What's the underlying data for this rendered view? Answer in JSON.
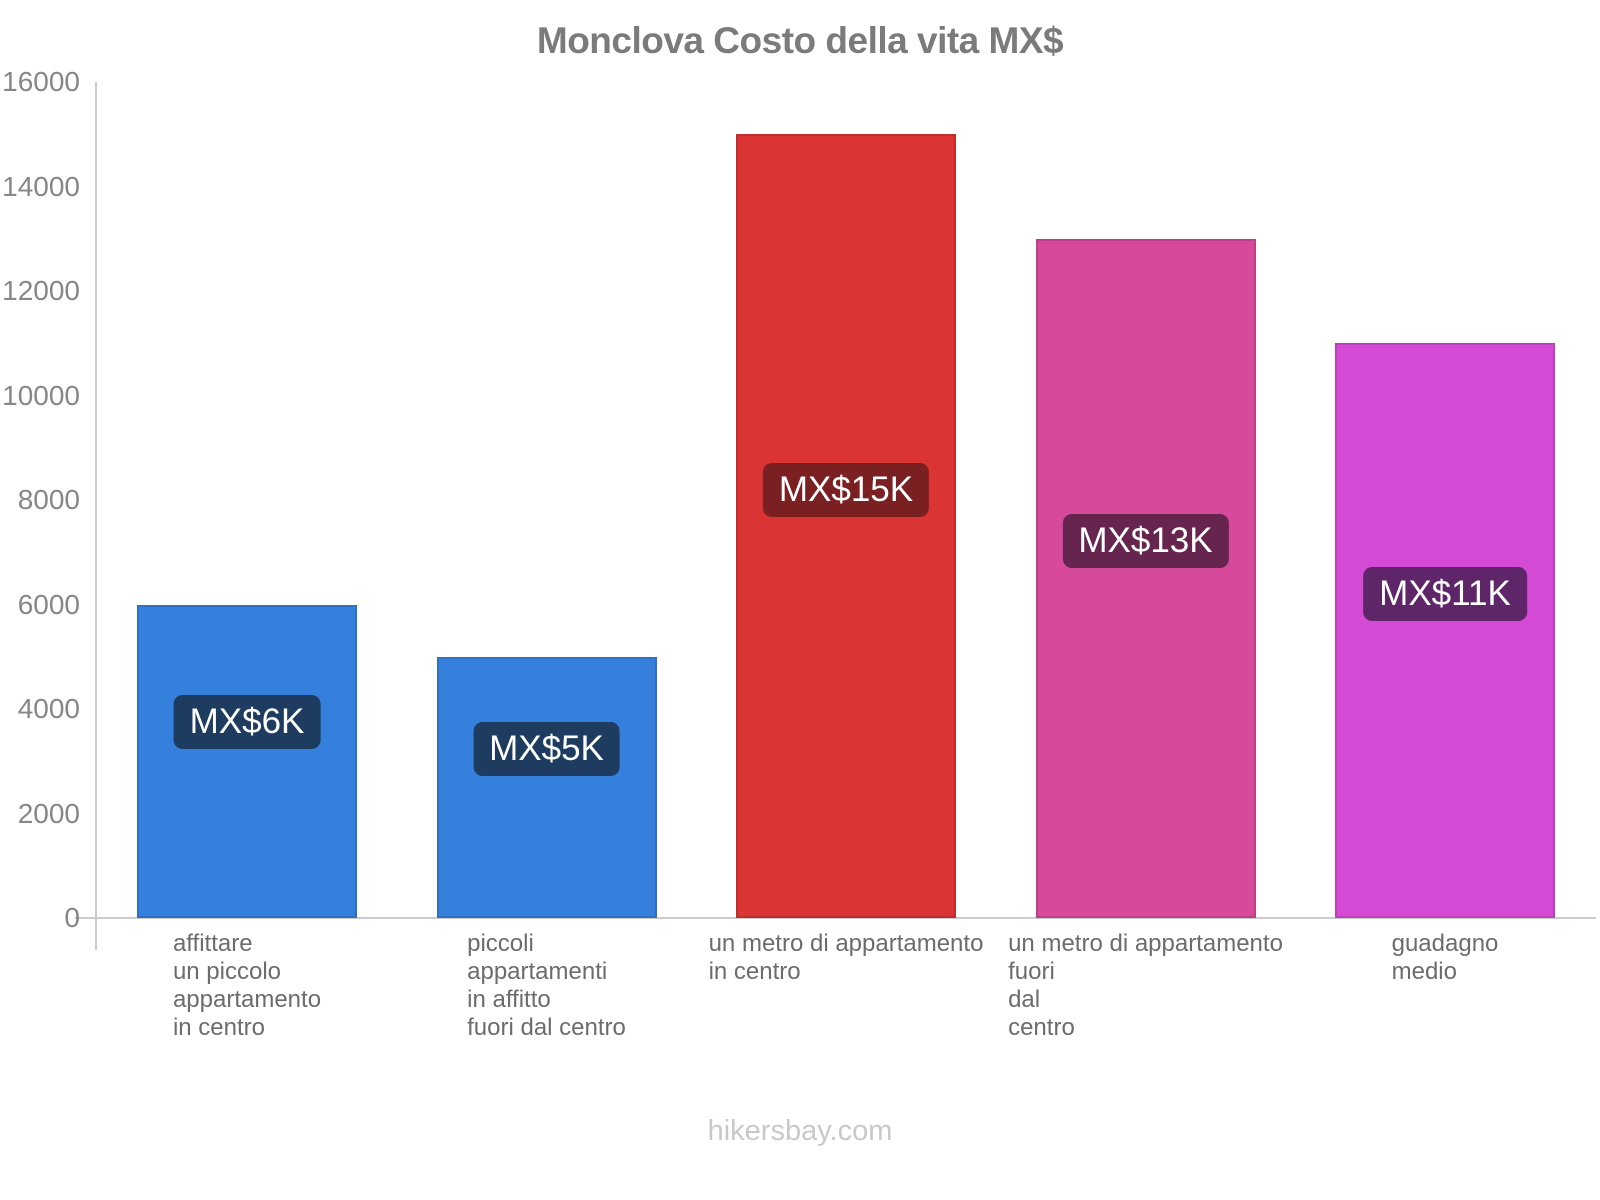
{
  "page": {
    "title": "Monclova Costo della vita MX$",
    "footer": "hikersbay.com"
  },
  "chart_data": {
    "type": "bar",
    "title": "Monclova Costo della vita MX$",
    "categories": [
      "affittare\nun piccolo\nappartamento\nin centro",
      "piccoli\nappartamenti\nin affitto\nfuori dal centro",
      "un metro di appartamento\nin centro",
      "un metro di appartamento\nfuori\ndal\ncentro",
      "guadagno\nmedio"
    ],
    "values": [
      6000,
      5000,
      15000,
      13000,
      11000
    ],
    "value_labels": [
      "MX$6K",
      "MX$5K",
      "MX$15K",
      "MX$13K",
      "MX$11K"
    ],
    "bar_colors": [
      "#3580dc",
      "#3580dc",
      "#db3434",
      "#d6499b",
      "#d44ad4"
    ],
    "value_label_bg": [
      "#1e3c5f",
      "#1e3c5f",
      "#7a2023",
      "#66254e",
      "#5e2569"
    ],
    "currency": "MX$",
    "xlabel": "",
    "ylabel": "",
    "ylim": [
      0,
      16000
    ],
    "yticks": [
      0,
      2000,
      4000,
      6000,
      8000,
      10000,
      12000,
      14000,
      16000
    ],
    "grid": false,
    "legend": false,
    "footer": "hikersbay.com"
  }
}
